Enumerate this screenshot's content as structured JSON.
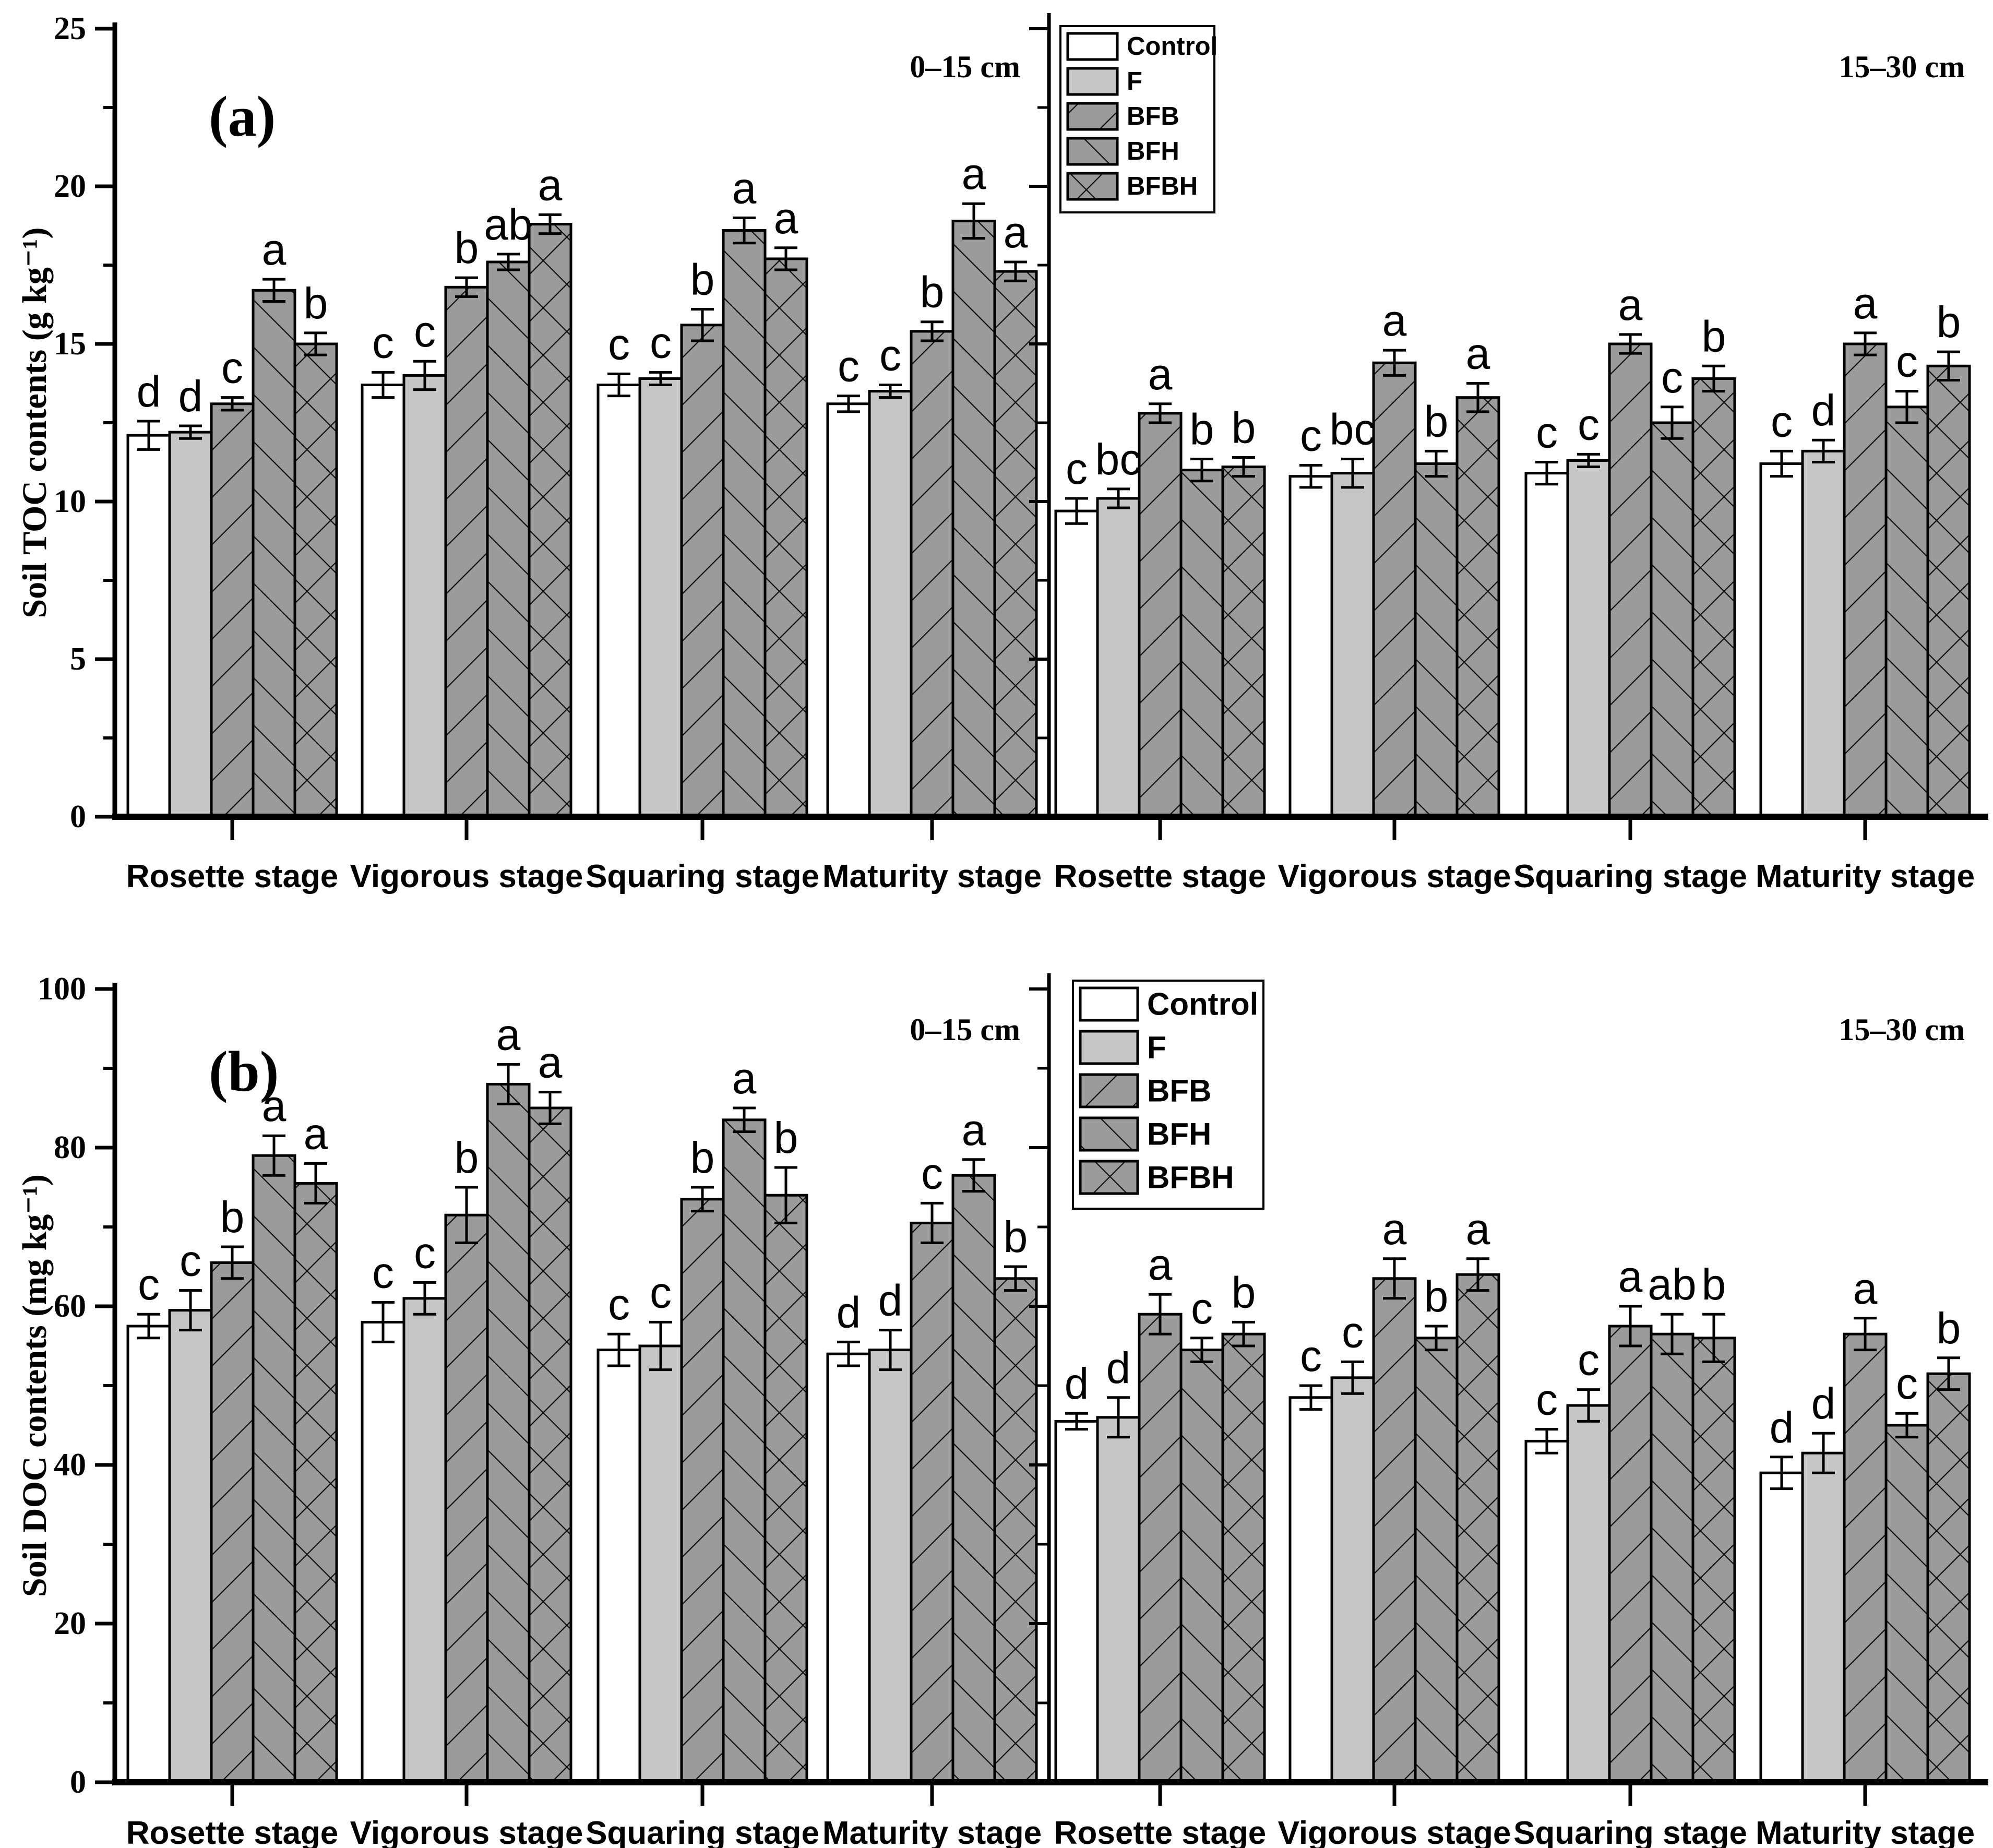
{
  "figure_style": {
    "bar_outline": "#000000",
    "hatch_line": "#111111",
    "axis_color": "#000000",
    "series_styles": {
      "Control": {
        "fill": "#ffffff",
        "hatch": "none"
      },
      "F": {
        "fill": "#c6c6c6",
        "hatch": "none"
      },
      "BFB": {
        "fill": "#9b9b9b",
        "hatch": "fwd"
      },
      "BFH": {
        "fill": "#9b9b9b",
        "hatch": "bwd"
      },
      "BFBH": {
        "fill": "#9b9b9b",
        "hatch": "cross"
      }
    }
  },
  "chart_data": [
    {
      "type": "bar",
      "panel_tag": "(a)",
      "ylabel": "Soil TOC contents (g kg⁻¹)",
      "ylim": [
        0,
        25
      ],
      "yticks": [
        0,
        5,
        10,
        15,
        20,
        25
      ],
      "yminor_step": 2.5,
      "grid": "off",
      "legend_position": "top, right of sub-panel divider",
      "legend": [
        "Control",
        "F",
        "BFB",
        "BFH",
        "BFBH"
      ],
      "categories": [
        "Rosette stage",
        "Vigorous stage",
        "Squaring stage",
        "Maturity stage"
      ],
      "subpanels": [
        {
          "depth_label": "0–15 cm",
          "series": [
            {
              "name": "Control",
              "values": [
                12.1,
                13.7,
                13.7,
                13.1
              ],
              "errors": [
                0.45,
                0.4,
                0.35,
                0.25
              ],
              "sig_letters": [
                "d",
                "c",
                "c",
                "c"
              ]
            },
            {
              "name": "F",
              "values": [
                12.2,
                14.0,
                13.9,
                13.5
              ],
              "errors": [
                0.2,
                0.45,
                0.2,
                0.2
              ],
              "sig_letters": [
                "d",
                "c",
                "c",
                "c"
              ]
            },
            {
              "name": "BFB",
              "values": [
                13.1,
                16.8,
                15.6,
                15.4
              ],
              "errors": [
                0.2,
                0.3,
                0.5,
                0.3
              ],
              "sig_letters": [
                "c",
                "b",
                "b",
                "b"
              ]
            },
            {
              "name": "BFH",
              "values": [
                16.7,
                17.6,
                18.6,
                18.9
              ],
              "errors": [
                0.35,
                0.25,
                0.4,
                0.55
              ],
              "sig_letters": [
                "a",
                "ab",
                "a",
                "a"
              ]
            },
            {
              "name": "BFBH",
              "values": [
                15.0,
                18.8,
                17.7,
                17.3
              ],
              "errors": [
                0.35,
                0.3,
                0.35,
                0.3
              ],
              "sig_letters": [
                "b",
                "a",
                "a",
                "a"
              ]
            }
          ]
        },
        {
          "depth_label": "15–30 cm",
          "series": [
            {
              "name": "Control",
              "values": [
                9.7,
                10.8,
                10.9,
                11.2
              ],
              "errors": [
                0.4,
                0.35,
                0.35,
                0.4
              ],
              "sig_letters": [
                "c",
                "c",
                "c",
                "c"
              ]
            },
            {
              "name": "F",
              "values": [
                10.1,
                10.9,
                11.3,
                11.6
              ],
              "errors": [
                0.3,
                0.45,
                0.2,
                0.35
              ],
              "sig_letters": [
                "bc",
                "bc",
                "c",
                "d"
              ]
            },
            {
              "name": "BFB",
              "values": [
                12.8,
                14.4,
                15.0,
                15.0
              ],
              "errors": [
                0.3,
                0.4,
                0.3,
                0.35
              ],
              "sig_letters": [
                "a",
                "a",
                "a",
                "a"
              ]
            },
            {
              "name": "BFH",
              "values": [
                11.0,
                11.2,
                12.5,
                13.0
              ],
              "errors": [
                0.35,
                0.4,
                0.5,
                0.5
              ],
              "sig_letters": [
                "b",
                "b",
                "c",
                "c"
              ]
            },
            {
              "name": "BFBH",
              "values": [
                11.1,
                13.3,
                13.9,
                14.3
              ],
              "errors": [
                0.3,
                0.45,
                0.4,
                0.45
              ],
              "sig_letters": [
                "b",
                "a",
                "b",
                "b"
              ]
            }
          ]
        }
      ]
    },
    {
      "type": "bar",
      "panel_tag": "(b)",
      "ylabel": "Soil DOC contents (mg kg⁻¹)",
      "ylim": [
        0,
        100
      ],
      "yticks": [
        0,
        20,
        40,
        60,
        80,
        100
      ],
      "yminor_step": 10,
      "grid": "off",
      "legend_position": "top, right of sub-panel divider",
      "legend": [
        "Control",
        "F",
        "BFB",
        "BFH",
        "BFBH"
      ],
      "categories": [
        "Rosette stage",
        "Vigorous stage",
        "Squaring stage",
        "Maturity stage"
      ],
      "subpanels": [
        {
          "depth_label": "0–15 cm",
          "series": [
            {
              "name": "Control",
              "values": [
                57.5,
                58.0,
                54.5,
                54.0
              ],
              "errors": [
                1.5,
                2.5,
                2.0,
                1.5
              ],
              "sig_letters": [
                "c",
                "c",
                "c",
                "d"
              ]
            },
            {
              "name": "F",
              "values": [
                59.5,
                61.0,
                55.0,
                54.5
              ],
              "errors": [
                2.5,
                2.0,
                3.0,
                2.5
              ],
              "sig_letters": [
                "c",
                "c",
                "c",
                "d"
              ]
            },
            {
              "name": "BFB",
              "values": [
                65.5,
                71.5,
                73.5,
                70.5
              ],
              "errors": [
                2.0,
                3.5,
                1.5,
                2.5
              ],
              "sig_letters": [
                "b",
                "b",
                "b",
                "c"
              ]
            },
            {
              "name": "BFH",
              "values": [
                79.0,
                88.0,
                83.5,
                76.5
              ],
              "errors": [
                2.5,
                2.5,
                1.5,
                2.0
              ],
              "sig_letters": [
                "a",
                "a",
                "a",
                "a"
              ]
            },
            {
              "name": "BFBH",
              "values": [
                75.5,
                85.0,
                74.0,
                63.5
              ],
              "errors": [
                2.5,
                2.0,
                3.5,
                1.5
              ],
              "sig_letters": [
                "a",
                "a",
                "b",
                "b"
              ]
            }
          ]
        },
        {
          "depth_label": "15–30 cm",
          "series": [
            {
              "name": "Control",
              "values": [
                45.5,
                48.5,
                43.0,
                39.0
              ],
              "errors": [
                1.0,
                1.5,
                1.5,
                2.0
              ],
              "sig_letters": [
                "d",
                "c",
                "c",
                "d"
              ]
            },
            {
              "name": "F",
              "values": [
                46.0,
                51.0,
                47.5,
                41.5
              ],
              "errors": [
                2.5,
                2.0,
                2.0,
                2.5
              ],
              "sig_letters": [
                "d",
                "c",
                "c",
                "d"
              ]
            },
            {
              "name": "BFB",
              "values": [
                59.0,
                63.5,
                57.5,
                56.5
              ],
              "errors": [
                2.5,
                2.5,
                2.5,
                2.0
              ],
              "sig_letters": [
                "a",
                "a",
                "a",
                "a"
              ]
            },
            {
              "name": "BFH",
              "values": [
                54.5,
                56.0,
                56.5,
                45.0
              ],
              "errors": [
                1.5,
                1.5,
                2.5,
                1.5
              ],
              "sig_letters": [
                "c",
                "b",
                "ab",
                "c"
              ]
            },
            {
              "name": "BFBH",
              "values": [
                56.5,
                64.0,
                56.0,
                51.5
              ],
              "errors": [
                1.5,
                2.0,
                3.0,
                2.0
              ],
              "sig_letters": [
                "b",
                "a",
                "b",
                "b"
              ]
            }
          ]
        }
      ]
    }
  ]
}
